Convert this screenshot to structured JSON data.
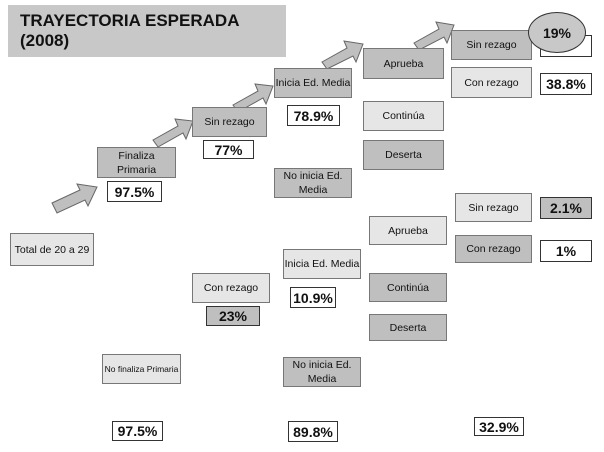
{
  "title": "TRAYECTORIA ESPERADA (2008)",
  "nodes": [
    "Total de 20 a 29",
    "Finaliza Primaria",
    "Sin rezago",
    "Inicia Ed. Media",
    "No inicia Ed. Media",
    "Aprueba",
    "Continúa",
    "Deserta",
    "Sin rezago",
    "Con rezago",
    "No finaliza Primaria",
    "Con rezago",
    "Inicia Ed. Media",
    "No inicia Ed. Media",
    "Aprueba",
    "Continúa",
    "Deserta",
    "Sin rezago",
    "Con rezago"
  ],
  "percentages": [
    "97.5%",
    "77%",
    "78.9%",
    "19%",
    "38.8%",
    "23%",
    "10.9%",
    "2.1%",
    "1%",
    "97.5%",
    "89.8%",
    "32.9%"
  ]
}
